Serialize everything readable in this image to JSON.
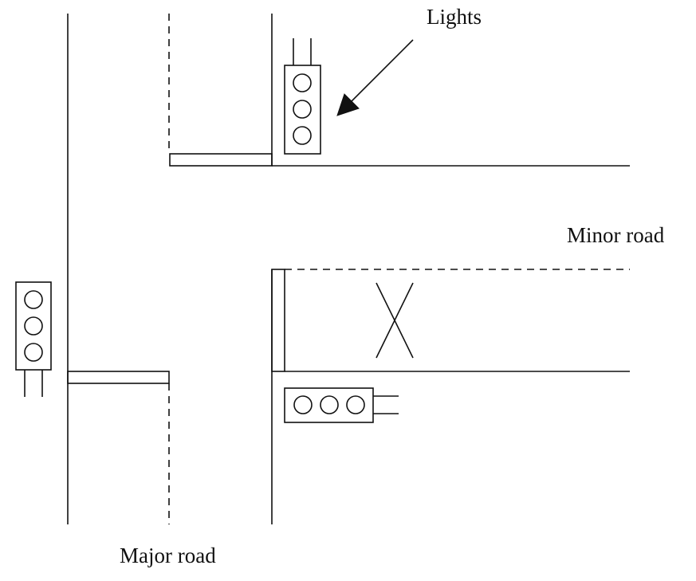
{
  "labels": {
    "lights": "Lights",
    "minor_road": "Minor road",
    "major_road": "Major road"
  },
  "colors": {
    "stroke": "#111111",
    "background": "#ffffff"
  }
}
